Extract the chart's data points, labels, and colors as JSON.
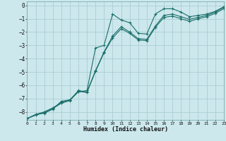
{
  "xlabel": "Humidex (Indice chaleur)",
  "bg_color": "#cce8ec",
  "grid_color": "#aacdd4",
  "line_color": "#1a6e6a",
  "xmin": 0,
  "xmax": 23,
  "ymin": -8.6,
  "ymax": 0.3,
  "series": [
    {
      "x": [
        0,
        1,
        2,
        3,
        4,
        5,
        6,
        7,
        8,
        9,
        10,
        11,
        12,
        13,
        14,
        15,
        16,
        17,
        18,
        19,
        20,
        21,
        22,
        23
      ],
      "y": [
        -8.5,
        -8.2,
        -8.1,
        -7.8,
        -7.2,
        -7.1,
        -6.5,
        -6.4,
        -3.2,
        -3.0,
        -0.65,
        -1.1,
        -1.3,
        -2.1,
        -2.15,
        -0.65,
        -0.25,
        -0.25,
        -0.5,
        -0.85,
        -0.75,
        -0.65,
        -0.45,
        -0.1
      ]
    },
    {
      "x": [
        0,
        1,
        2,
        3,
        4,
        5,
        6,
        7,
        8,
        9,
        10,
        11,
        12,
        13,
        14,
        15,
        16,
        17,
        18,
        19,
        20,
        21,
        22,
        23
      ],
      "y": [
        -8.5,
        -8.2,
        -8.0,
        -7.7,
        -7.3,
        -7.1,
        -6.4,
        -6.5,
        -4.9,
        -3.5,
        -2.3,
        -1.6,
        -2.0,
        -2.5,
        -2.55,
        -1.55,
        -0.75,
        -0.65,
        -0.85,
        -1.05,
        -0.9,
        -0.75,
        -0.5,
        -0.15
      ]
    },
    {
      "x": [
        0,
        1,
        2,
        3,
        4,
        5,
        6,
        7,
        8,
        9,
        10,
        11,
        12,
        13,
        14,
        15,
        16,
        17,
        18,
        19,
        20,
        21,
        22,
        23
      ],
      "y": [
        -8.5,
        -8.25,
        -8.05,
        -7.75,
        -7.35,
        -7.15,
        -6.45,
        -6.55,
        -4.95,
        -3.55,
        -2.45,
        -1.75,
        -2.1,
        -2.6,
        -2.65,
        -1.65,
        -0.9,
        -0.8,
        -1.0,
        -1.2,
        -1.0,
        -0.85,
        -0.6,
        -0.25
      ]
    }
  ]
}
